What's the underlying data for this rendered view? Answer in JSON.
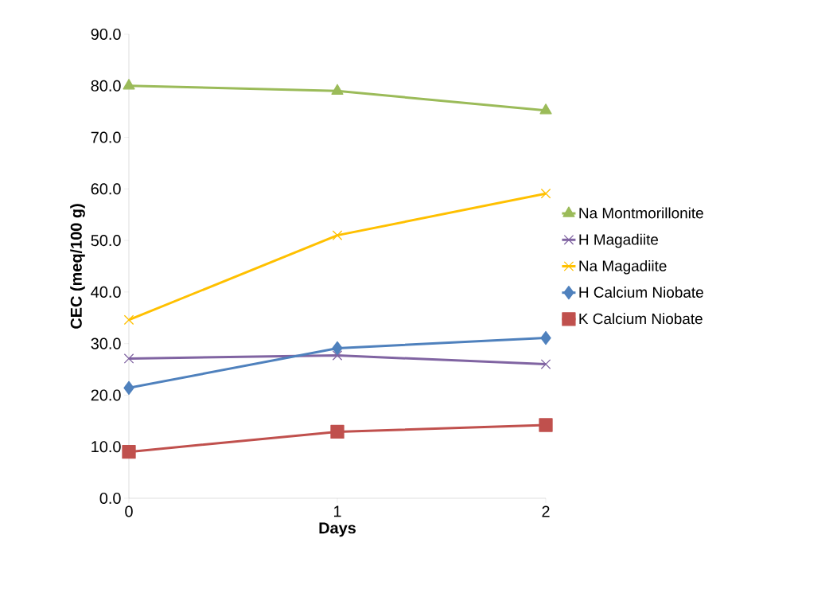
{
  "chart_data": {
    "type": "line",
    "xlabel": "Days",
    "ylabel": "CEC (meq/100 g)",
    "categories": [
      "0",
      "1",
      "2"
    ],
    "series": [
      {
        "name": "Na Montmorillonite",
        "color": "#9bbb59",
        "marker": "triangle",
        "values": [
          80.0,
          79.0,
          75.2
        ]
      },
      {
        "name": "H Magadiite",
        "color": "#8064a2",
        "marker": "cross",
        "values": [
          27.1,
          27.7,
          26.0
        ]
      },
      {
        "name": "Na Magadiite",
        "color": "#ffc000",
        "marker": "cross",
        "values": [
          34.6,
          51.0,
          59.1
        ]
      },
      {
        "name": "H Calcium Niobate",
        "color": "#4f81bd",
        "marker": "diamond",
        "values": [
          21.4,
          29.1,
          31.1
        ]
      },
      {
        "name": "K Calcium Niobate",
        "color": "#c0504d",
        "marker": "square",
        "values": [
          9.0,
          12.9,
          14.2
        ]
      }
    ],
    "ylim": [
      0,
      90
    ],
    "yticks": [
      {
        "value": 0,
        "label": "0.0"
      },
      {
        "value": 10,
        "label": "10.0"
      },
      {
        "value": 20,
        "label": "20.0"
      },
      {
        "value": 30,
        "label": "30.0"
      },
      {
        "value": 40,
        "label": "40.0"
      },
      {
        "value": 50,
        "label": "50.0"
      },
      {
        "value": 60,
        "label": "60.0"
      },
      {
        "value": 70,
        "label": "70.0"
      },
      {
        "value": 80,
        "label": "80.0"
      },
      {
        "value": 90,
        "label": "90.0"
      }
    ],
    "grid": false,
    "legend": "right",
    "line_style": "solid"
  }
}
